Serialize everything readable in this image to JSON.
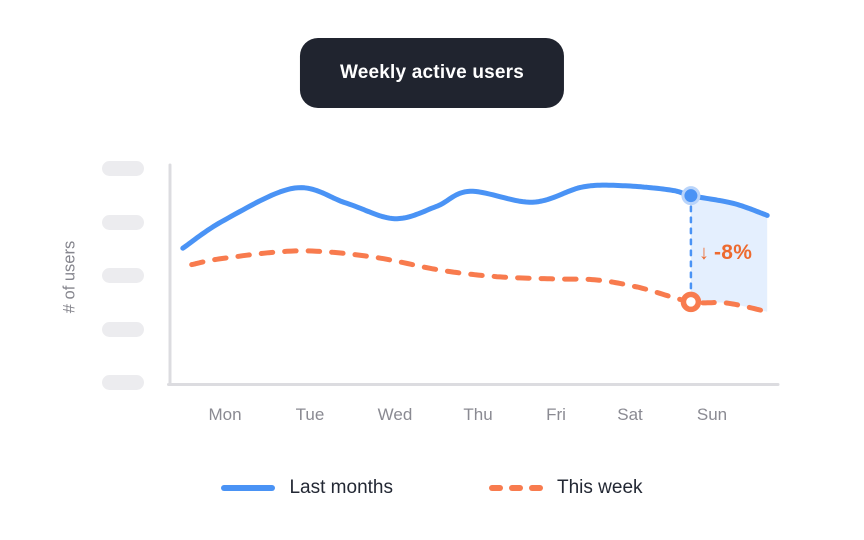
{
  "chart_data": {
    "type": "line",
    "title": "Weekly active users",
    "ylabel": "# of users",
    "categories": [
      "Mon",
      "Tue",
      "Wed",
      "Thu",
      "Fri",
      "Sat",
      "Sun"
    ],
    "x_note": "x in day units: Mon=0 … Sun=6; both curves extend ~0.5 day before Mon and ~0.7 day after Sun",
    "y_note": "y axis has unlabeled skeleton placeholder ticks; values estimated on a 0-100 scale",
    "ylim": [
      0,
      100
    ],
    "grid": false,
    "legend_position": "bottom",
    "series": [
      {
        "name": "Last months",
        "style": "solid",
        "color": "#4A93F5",
        "points": [
          [
            -0.52,
            62
          ],
          [
            0,
            75
          ],
          [
            0.86,
            89.5
          ],
          [
            1.5,
            82.5
          ],
          [
            2.09,
            75.5
          ],
          [
            2.6,
            81
          ],
          [
            3.02,
            88
          ],
          [
            3.79,
            83
          ],
          [
            4.41,
            90
          ],
          [
            4.93,
            90.5
          ],
          [
            5.5,
            88.5
          ],
          [
            5.74,
            86
          ],
          [
            6.26,
            82.5
          ],
          [
            6.68,
            77
          ]
        ]
      },
      {
        "name": "This week",
        "style": "dashed",
        "color": "#F87B4E",
        "points": [
          [
            -0.41,
            54.5
          ],
          [
            0,
            57.5
          ],
          [
            0.92,
            60.8
          ],
          [
            1.82,
            58
          ],
          [
            2.65,
            52
          ],
          [
            3.35,
            49
          ],
          [
            4.04,
            48
          ],
          [
            4.58,
            47.5
          ],
          [
            5.11,
            44
          ],
          [
            5.74,
            37.5
          ],
          [
            6.18,
            37
          ],
          [
            6.68,
            33
          ]
        ]
      }
    ],
    "annotation": {
      "arrow": "↓",
      "text": "-8%",
      "color": "#ED6A2F",
      "at_day": 5.74
    },
    "highlight": {
      "marker_day": 5.74,
      "last_months_value": 86,
      "this_week_value": 37.5,
      "shaded_between_series_from_day": 5.74,
      "shaded_to_day": 6.68,
      "fill_color": "rgba(74,147,245,0.15)"
    },
    "colors": {
      "axis": "#DCDCE0",
      "tick_placeholder": "#ECECEF",
      "x_labels": "#8A8A92",
      "ylabel_text": "#85858D",
      "legend_text": "#232834",
      "badge_bg": "#20242F",
      "badge_text": "#FFFFFF",
      "connector": "#4A93F5"
    }
  }
}
